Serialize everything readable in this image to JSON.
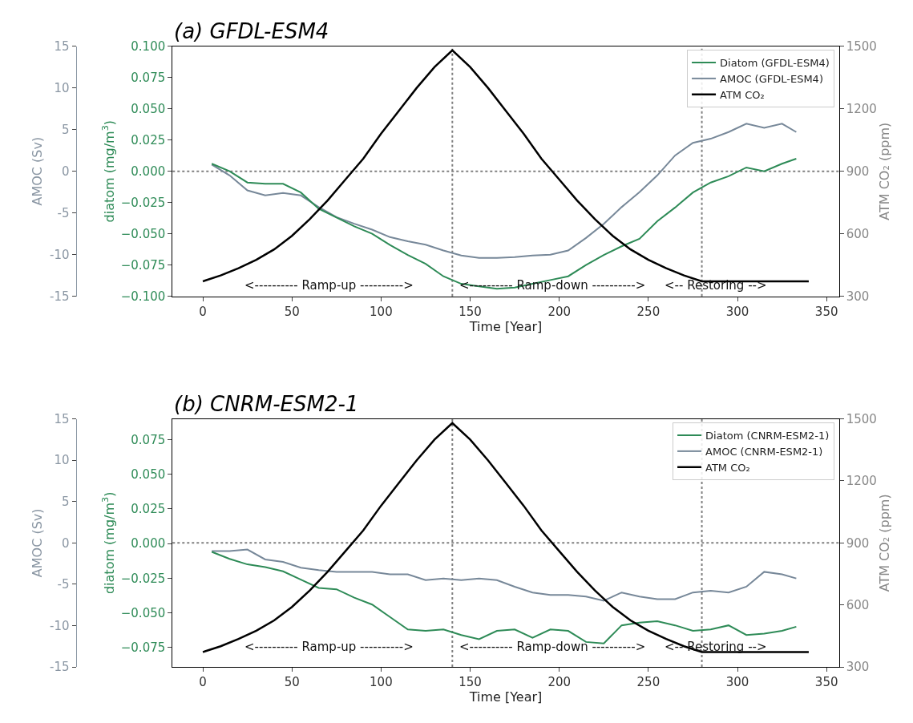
{
  "chart_data": [
    {
      "type": "line",
      "title": "(a) GFDL-ESM4",
      "xlabel": "Time [Year]",
      "ylabel": "AMOC (Sv)",
      "y2label": "diatom (mg/m$^{3}$)",
      "y3label": "ATM CO₂ (ppm)",
      "xlim": [
        -17,
        357
      ],
      "xticks": [
        0,
        50,
        100,
        150,
        200,
        250,
        300,
        350
      ],
      "ylim": [
        -15,
        15
      ],
      "yticks": [
        -15,
        -10,
        -5,
        0,
        5,
        10,
        15
      ],
      "y2lim": [
        -0.1,
        0.1
      ],
      "y2ticks": [
        {
          "value": -0.1,
          "label": "−0.100"
        },
        {
          "value": -0.075,
          "label": "−0.075"
        },
        {
          "value": -0.05,
          "label": "−0.050"
        },
        {
          "value": -0.025,
          "label": "−0.025"
        },
        {
          "value": 0,
          "label": "0.000"
        },
        {
          "value": 0.025,
          "label": "0.025"
        },
        {
          "value": 0.05,
          "label": "0.050"
        },
        {
          "value": 0.075,
          "label": "0.075"
        },
        {
          "value": 0.1,
          "label": "0.100"
        }
      ],
      "y3lim": [
        300,
        1500
      ],
      "y3ticks": [
        300,
        600,
        900,
        1200,
        1500
      ],
      "legend": "top right",
      "grid": false,
      "series": [
        {
          "name": "Diatom (GFDL-ESM4)",
          "color": "#2e8b57",
          "axis": "y2",
          "x": [
            5,
            15,
            25,
            35,
            45,
            55,
            65,
            75,
            85,
            95,
            105,
            115,
            125,
            135,
            145,
            155,
            165,
            175,
            185,
            195,
            205,
            215,
            225,
            235,
            245,
            255,
            265,
            275,
            285,
            295,
            305,
            315,
            325,
            333
          ],
          "values": [
            0.006,
            0.0,
            -0.009,
            -0.01,
            -0.01,
            -0.017,
            -0.03,
            -0.037,
            -0.044,
            -0.05,
            -0.059,
            -0.067,
            -0.074,
            -0.084,
            -0.09,
            -0.092,
            -0.094,
            -0.093,
            -0.09,
            -0.087,
            -0.084,
            -0.075,
            -0.067,
            -0.06,
            -0.054,
            -0.04,
            -0.029,
            -0.017,
            -0.009,
            -0.004,
            0.003,
            0.0,
            0.006,
            0.01
          ]
        },
        {
          "name": "AMOC (GFDL-ESM4)",
          "color": "#778899",
          "axis": "y",
          "x": [
            5,
            15,
            25,
            35,
            45,
            55,
            65,
            75,
            85,
            95,
            105,
            115,
            125,
            135,
            145,
            155,
            165,
            175,
            185,
            195,
            205,
            215,
            225,
            235,
            245,
            255,
            265,
            275,
            285,
            295,
            305,
            315,
            325,
            333
          ],
          "values": [
            0.8,
            -0.5,
            -2.3,
            -2.9,
            -2.6,
            -2.9,
            -4.3,
            -5.5,
            -6.3,
            -7.0,
            -7.9,
            -8.4,
            -8.8,
            -9.5,
            -10.1,
            -10.4,
            -10.4,
            -10.3,
            -10.1,
            -10.0,
            -9.5,
            -8.0,
            -6.3,
            -4.3,
            -2.5,
            -0.5,
            1.9,
            3.4,
            3.9,
            4.7,
            5.7,
            5.2,
            5.7,
            4.7
          ]
        },
        {
          "name": "ATM CO₂",
          "color": "#000000",
          "axis": "y3",
          "x": [
            0,
            10,
            20,
            30,
            40,
            50,
            60,
            70,
            80,
            90,
            100,
            110,
            120,
            130,
            140,
            150,
            160,
            170,
            180,
            190,
            200,
            210,
            220,
            230,
            240,
            250,
            260,
            270,
            280,
            340
          ],
          "values": [
            372,
            400,
            435,
            475,
            525,
            590,
            670,
            760,
            860,
            960,
            1080,
            1190,
            1300,
            1400,
            1480,
            1400,
            1300,
            1190,
            1080,
            960,
            860,
            760,
            670,
            590,
            525,
            475,
            435,
            400,
            372,
            372
          ]
        }
      ],
      "ref_lines": [
        {
          "axis": "x",
          "value": 140,
          "color": "#808080",
          "line_style": "dotted"
        },
        {
          "axis": "x",
          "value": 280,
          "color": "#808080",
          "line_style": "dotted"
        },
        {
          "axis": "y",
          "value": 0,
          "color": "#808080",
          "line_style": "dotted"
        }
      ],
      "annotations": [
        "<---------- Ramp-up ---------->",
        "<---------- Ramp-down ---------->",
        "<-- Restoring -->"
      ]
    },
    {
      "type": "line",
      "title": "(b) CNRM-ESM2-1",
      "xlabel": "Time [Year]",
      "ylabel": "AMOC (Sv)",
      "y2label": "diatom (mg/m$^{3}$)",
      "y3label": "ATM CO₂ (ppm)",
      "xlim": [
        -17,
        357
      ],
      "xticks": [
        0,
        50,
        100,
        150,
        200,
        250,
        300,
        350
      ],
      "ylim": [
        -15,
        15
      ],
      "yticks": [
        -15,
        -10,
        -5,
        0,
        5,
        10,
        15
      ],
      "y2lim": [
        -0.089,
        0.09
      ],
      "y2ticks": [
        {
          "value": -0.075,
          "label": "−0.075"
        },
        {
          "value": -0.05,
          "label": "−0.050"
        },
        {
          "value": -0.025,
          "label": "−0.025"
        },
        {
          "value": 0,
          "label": "0.000"
        },
        {
          "value": 0.025,
          "label": "0.025"
        },
        {
          "value": 0.05,
          "label": "0.050"
        },
        {
          "value": 0.075,
          "label": "0.075"
        }
      ],
      "y3lim": [
        300,
        1500
      ],
      "y3ticks": [
        300,
        600,
        900,
        1200,
        1500
      ],
      "legend": "top right",
      "grid": false,
      "series": [
        {
          "name": "Diatom (CNRM-ESM2-1)",
          "color": "#2e8b57",
          "axis": "y2",
          "x": [
            5,
            15,
            25,
            35,
            45,
            55,
            65,
            75,
            85,
            95,
            105,
            115,
            125,
            135,
            145,
            155,
            165,
            175,
            185,
            195,
            205,
            215,
            225,
            235,
            245,
            255,
            265,
            275,
            285,
            295,
            305,
            315,
            325,
            333
          ],
          "values": [
            -0.006,
            -0.011,
            -0.015,
            -0.017,
            -0.02,
            -0.026,
            -0.032,
            -0.033,
            -0.039,
            -0.044,
            -0.053,
            -0.062,
            -0.063,
            -0.062,
            -0.066,
            -0.069,
            -0.063,
            -0.062,
            -0.068,
            -0.062,
            -0.063,
            -0.071,
            -0.072,
            -0.059,
            -0.057,
            -0.056,
            -0.059,
            -0.063,
            -0.062,
            -0.059,
            -0.066,
            -0.065,
            -0.063,
            -0.06
          ]
        },
        {
          "name": "AMOC (CNRM-ESM2-1)",
          "color": "#778899",
          "axis": "y",
          "x": [
            5,
            15,
            25,
            35,
            45,
            55,
            65,
            75,
            85,
            95,
            105,
            115,
            125,
            135,
            145,
            155,
            165,
            175,
            185,
            195,
            205,
            215,
            225,
            235,
            245,
            255,
            265,
            275,
            285,
            295,
            305,
            315,
            325,
            333
          ],
          "values": [
            -1.0,
            -1.0,
            -0.8,
            -2.0,
            -2.3,
            -3.0,
            -3.3,
            -3.5,
            -3.5,
            -3.5,
            -3.8,
            -3.8,
            -4.5,
            -4.3,
            -4.5,
            -4.3,
            -4.5,
            -5.3,
            -6.0,
            -6.3,
            -6.3,
            -6.5,
            -7.0,
            -6.0,
            -6.5,
            -6.8,
            -6.8,
            -6.0,
            -5.8,
            -6.0,
            -5.3,
            -3.5,
            -3.8,
            -4.3
          ]
        },
        {
          "name": "ATM CO₂",
          "color": "#000000",
          "axis": "y3",
          "x": [
            0,
            10,
            20,
            30,
            40,
            50,
            60,
            70,
            80,
            90,
            100,
            110,
            120,
            130,
            140,
            150,
            160,
            170,
            180,
            190,
            200,
            210,
            220,
            230,
            240,
            250,
            260,
            270,
            280,
            340
          ],
          "values": [
            372,
            400,
            435,
            475,
            525,
            590,
            670,
            760,
            860,
            960,
            1080,
            1190,
            1300,
            1400,
            1480,
            1400,
            1300,
            1190,
            1080,
            960,
            860,
            760,
            670,
            590,
            525,
            475,
            435,
            400,
            372,
            372
          ]
        }
      ],
      "ref_lines": [
        {
          "axis": "x",
          "value": 140,
          "color": "#808080",
          "line_style": "dotted"
        },
        {
          "axis": "x",
          "value": 280,
          "color": "#808080",
          "line_style": "dotted"
        },
        {
          "axis": "y",
          "value": 0,
          "color": "#808080",
          "line_style": "dotted"
        }
      ],
      "annotations": [
        "<---------- Ramp-up ---------->",
        "<---------- Ramp-down ---------->",
        "<-- Restoring -->"
      ]
    }
  ]
}
